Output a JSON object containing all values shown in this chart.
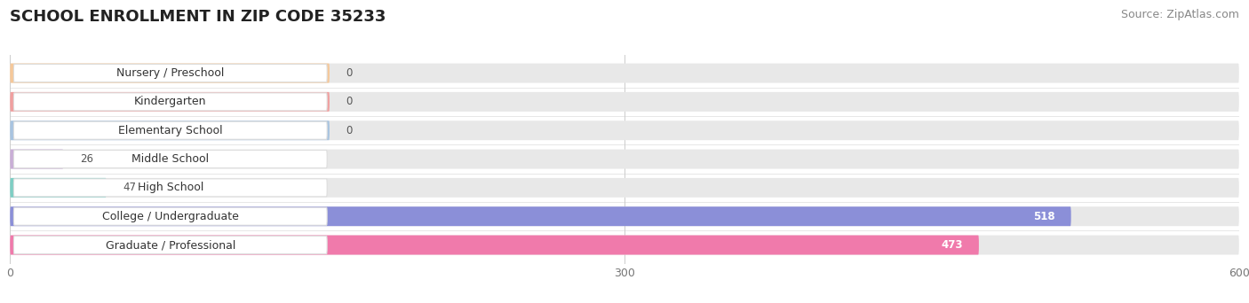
{
  "title": "SCHOOL ENROLLMENT IN ZIP CODE 35233",
  "source": "Source: ZipAtlas.com",
  "categories": [
    "Nursery / Preschool",
    "Kindergarten",
    "Elementary School",
    "Middle School",
    "High School",
    "College / Undergraduate",
    "Graduate / Professional"
  ],
  "values": [
    0,
    0,
    0,
    26,
    47,
    518,
    473
  ],
  "bar_colors": [
    "#f5c89a",
    "#f0a0a0",
    "#a8c4e0",
    "#c9aed6",
    "#7ecec4",
    "#8b8fd8",
    "#f07aab"
  ],
  "bar_bg_color": "#e8e8e8",
  "xlim": [
    0,
    600
  ],
  "xticks": [
    0,
    300,
    600
  ],
  "title_fontsize": 13,
  "source_fontsize": 9,
  "label_fontsize": 9,
  "value_fontsize": 8.5,
  "background_color": "#ffffff",
  "bar_height": 0.68,
  "label_text_color": "#333333",
  "value_inside_color": "#ffffff",
  "value_outside_color": "#555555"
}
